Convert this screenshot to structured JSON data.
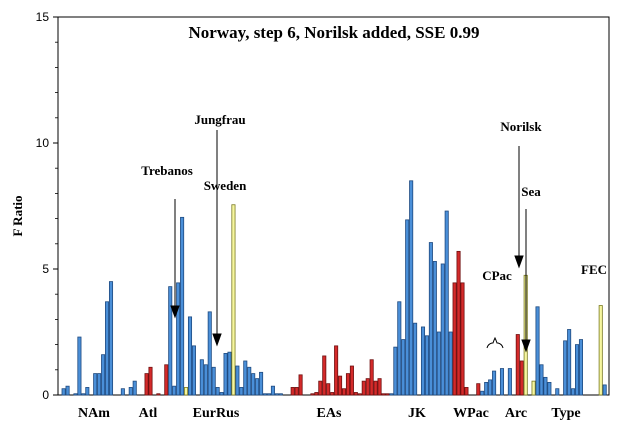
{
  "chart_data": {
    "type": "bar",
    "title": "Norway, step 6, Norilsk added, SSE 0.99",
    "ylabel": "F Ratio",
    "xlabel": "",
    "ylim": [
      0,
      15
    ],
    "yticks": [
      "0",
      "5",
      "10",
      "15"
    ],
    "groups": [
      "NAm",
      "Atl",
      "EurRus",
      "EAs",
      "JK",
      "WPac",
      "Arc",
      "Type"
    ],
    "annotations": [
      "Jungfrau",
      "Trebanos",
      "Sweden",
      "Norilsk",
      "Sea",
      "CPac",
      "FEC"
    ],
    "colors": {
      "blue": "#4a8fd8",
      "red": "#d42a2a",
      "yellow": "#f6f6a0",
      "blue_edge": "#1e4a80",
      "red_edge": "#701010",
      "yellow_edge": "#7a7a20"
    },
    "bars": [
      {
        "c": "blue",
        "v": 0.25
      },
      {
        "c": "blue",
        "v": 0.35
      },
      {
        "c": "blue",
        "v": 0.0
      },
      {
        "c": "blue",
        "v": 0.05
      },
      {
        "c": "blue",
        "v": 2.3
      },
      {
        "c": "blue",
        "v": 0.05
      },
      {
        "c": "blue",
        "v": 0.3
      },
      {
        "c": "blue",
        "v": 0.0
      },
      {
        "c": "blue",
        "v": 0.85
      },
      {
        "c": "blue",
        "v": 0.85
      },
      {
        "c": "blue",
        "v": 1.6
      },
      {
        "c": "blue",
        "v": 3.7
      },
      {
        "c": "blue",
        "v": 4.5
      },
      {
        "c": "blue",
        "v": 0.0
      },
      {
        "c": "blue",
        "v": 0.0
      },
      {
        "c": "blue",
        "v": 0.25
      },
      {
        "c": "blue",
        "v": 0.0
      },
      {
        "c": "blue",
        "v": 0.3
      },
      {
        "c": "blue",
        "v": 0.55
      },
      {
        "c": "blue",
        "v": 0.0
      },
      {
        "c": "red",
        "v": 0.0
      },
      {
        "c": "red",
        "v": 0.85
      },
      {
        "c": "red",
        "v": 1.1
      },
      {
        "c": "red",
        "v": 0.0
      },
      {
        "c": "red",
        "v": 0.05
      },
      {
        "c": "red",
        "v": 0.0
      },
      {
        "c": "red",
        "v": 1.2
      },
      {
        "c": "blue",
        "v": 4.3
      },
      {
        "c": "blue",
        "v": 0.35
      },
      {
        "c": "blue",
        "v": 4.45
      },
      {
        "c": "blue",
        "v": 7.05
      },
      {
        "c": "yellow",
        "v": 0.3
      },
      {
        "c": "blue",
        "v": 3.1
      },
      {
        "c": "blue",
        "v": 1.95
      },
      {
        "c": "blue",
        "v": 0.0
      },
      {
        "c": "blue",
        "v": 1.4
      },
      {
        "c": "blue",
        "v": 1.2
      },
      {
        "c": "blue",
        "v": 3.3
      },
      {
        "c": "blue",
        "v": 1.1
      },
      {
        "c": "blue",
        "v": 0.3
      },
      {
        "c": "blue",
        "v": 0.1
      },
      {
        "c": "blue",
        "v": 1.65
      },
      {
        "c": "blue",
        "v": 1.7
      },
      {
        "c": "yellow",
        "v": 7.55
      },
      {
        "c": "blue",
        "v": 1.15
      },
      {
        "c": "blue",
        "v": 0.3
      },
      {
        "c": "blue",
        "v": 1.35
      },
      {
        "c": "blue",
        "v": 1.1
      },
      {
        "c": "blue",
        "v": 0.85
      },
      {
        "c": "blue",
        "v": 0.65
      },
      {
        "c": "blue",
        "v": 0.9
      },
      {
        "c": "blue",
        "v": 0.05
      },
      {
        "c": "blue",
        "v": 0.05
      },
      {
        "c": "blue",
        "v": 0.35
      },
      {
        "c": "blue",
        "v": 0.05
      },
      {
        "c": "blue",
        "v": 0.05
      },
      {
        "c": "blue",
        "v": 0.0
      },
      {
        "c": "blue",
        "v": 0.0
      },
      {
        "c": "red",
        "v": 0.3
      },
      {
        "c": "red",
        "v": 0.3
      },
      {
        "c": "red",
        "v": 0.8
      },
      {
        "c": "red",
        "v": 0.0
      },
      {
        "c": "red",
        "v": 0.0
      },
      {
        "c": "red",
        "v": 0.05
      },
      {
        "c": "red",
        "v": 0.1
      },
      {
        "c": "red",
        "v": 0.55
      },
      {
        "c": "red",
        "v": 1.55
      },
      {
        "c": "red",
        "v": 0.45
      },
      {
        "c": "red",
        "v": 0.1
      },
      {
        "c": "red",
        "v": 1.95
      },
      {
        "c": "red",
        "v": 0.75
      },
      {
        "c": "red",
        "v": 0.25
      },
      {
        "c": "red",
        "v": 0.85
      },
      {
        "c": "red",
        "v": 1.15
      },
      {
        "c": "red",
        "v": 0.1
      },
      {
        "c": "red",
        "v": 0.05
      },
      {
        "c": "red",
        "v": 0.55
      },
      {
        "c": "red",
        "v": 0.65
      },
      {
        "c": "red",
        "v": 1.4
      },
      {
        "c": "red",
        "v": 0.55
      },
      {
        "c": "red",
        "v": 0.65
      },
      {
        "c": "red",
        "v": 0.05
      },
      {
        "c": "red",
        "v": 0.05
      },
      {
        "c": "blue",
        "v": 0.05
      },
      {
        "c": "blue",
        "v": 1.9
      },
      {
        "c": "blue",
        "v": 3.7
      },
      {
        "c": "blue",
        "v": 2.2
      },
      {
        "c": "blue",
        "v": 6.95
      },
      {
        "c": "blue",
        "v": 8.5
      },
      {
        "c": "blue",
        "v": 2.85
      },
      {
        "c": "blue",
        "v": 0.0
      },
      {
        "c": "blue",
        "v": 2.7
      },
      {
        "c": "blue",
        "v": 2.35
      },
      {
        "c": "blue",
        "v": 6.05
      },
      {
        "c": "blue",
        "v": 5.3
      },
      {
        "c": "blue",
        "v": 2.5
      },
      {
        "c": "blue",
        "v": 5.2
      },
      {
        "c": "blue",
        "v": 7.3
      },
      {
        "c": "blue",
        "v": 2.5
      },
      {
        "c": "red",
        "v": 4.45
      },
      {
        "c": "red",
        "v": 5.7
      },
      {
        "c": "red",
        "v": 4.45
      },
      {
        "c": "red",
        "v": 0.3
      },
      {
        "c": "red",
        "v": 0.0
      },
      {
        "c": "red",
        "v": 0.0
      },
      {
        "c": "red",
        "v": 0.45
      },
      {
        "c": "blue",
        "v": 0.15
      },
      {
        "c": "blue",
        "v": 0.5
      },
      {
        "c": "blue",
        "v": 0.6
      },
      {
        "c": "blue",
        "v": 0.95
      },
      {
        "c": "blue",
        "v": 0.0
      },
      {
        "c": "blue",
        "v": 1.05
      },
      {
        "c": "blue",
        "v": 0.0
      },
      {
        "c": "blue",
        "v": 1.05
      },
      {
        "c": "red",
        "v": 0.0
      },
      {
        "c": "red",
        "v": 2.4
      },
      {
        "c": "red",
        "v": 1.35
      },
      {
        "c": "yellow",
        "v": 4.75
      },
      {
        "c": "yellow",
        "v": 0.0
      },
      {
        "c": "yellow",
        "v": 0.55
      },
      {
        "c": "blue",
        "v": 3.5
      },
      {
        "c": "blue",
        "v": 1.2
      },
      {
        "c": "blue",
        "v": 0.7
      },
      {
        "c": "blue",
        "v": 0.5
      },
      {
        "c": "blue",
        "v": 0.0
      },
      {
        "c": "blue",
        "v": 0.25
      },
      {
        "c": "blue",
        "v": 0.0
      },
      {
        "c": "blue",
        "v": 2.15
      },
      {
        "c": "blue",
        "v": 2.6
      },
      {
        "c": "blue",
        "v": 0.25
      },
      {
        "c": "blue",
        "v": 2.0
      },
      {
        "c": "blue",
        "v": 2.2
      },
      {
        "c": "blue",
        "v": 0.0
      },
      {
        "c": "blue",
        "v": 0.0
      },
      {
        "c": "blue",
        "v": 0.0
      },
      {
        "c": "blue",
        "v": 0.0
      },
      {
        "c": "yellow",
        "v": 3.55
      },
      {
        "c": "blue",
        "v": 0.4
      }
    ]
  }
}
